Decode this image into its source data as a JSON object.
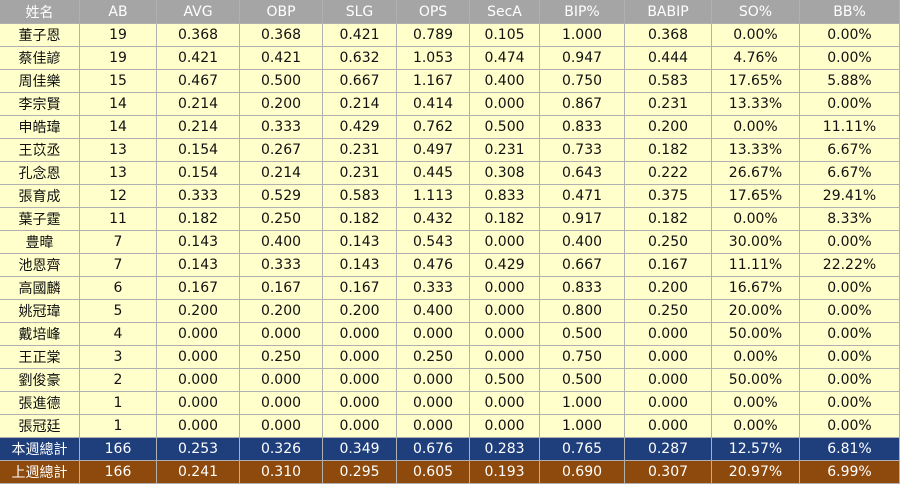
{
  "table": {
    "header": [
      "姓名",
      "AB",
      "AVG",
      "OBP",
      "SLG",
      "OPS",
      "SecA",
      "BIP%",
      "BABIP",
      "SO%",
      "BB%"
    ],
    "rows": [
      [
        "董子恩",
        "19",
        "0.368",
        "0.368",
        "0.421",
        "0.789",
        "0.105",
        "1.000",
        "0.368",
        "0.00%",
        "0.00%"
      ],
      [
        "蔡佳諺",
        "19",
        "0.421",
        "0.421",
        "0.632",
        "1.053",
        "0.474",
        "0.947",
        "0.444",
        "4.76%",
        "0.00%"
      ],
      [
        "周佳樂",
        "15",
        "0.467",
        "0.500",
        "0.667",
        "1.167",
        "0.400",
        "0.750",
        "0.583",
        "17.65%",
        "5.88%"
      ],
      [
        "李宗賢",
        "14",
        "0.214",
        "0.200",
        "0.214",
        "0.414",
        "0.000",
        "0.867",
        "0.231",
        "13.33%",
        "0.00%"
      ],
      [
        "申皓瑋",
        "14",
        "0.214",
        "0.333",
        "0.429",
        "0.762",
        "0.500",
        "0.833",
        "0.200",
        "0.00%",
        "11.11%"
      ],
      [
        "王苡丞",
        "13",
        "0.154",
        "0.267",
        "0.231",
        "0.497",
        "0.231",
        "0.733",
        "0.182",
        "13.33%",
        "6.67%"
      ],
      [
        "孔念恩",
        "13",
        "0.154",
        "0.214",
        "0.231",
        "0.445",
        "0.308",
        "0.643",
        "0.222",
        "26.67%",
        "6.67%"
      ],
      [
        "張育成",
        "12",
        "0.333",
        "0.529",
        "0.583",
        "1.113",
        "0.833",
        "0.471",
        "0.375",
        "17.65%",
        "29.41%"
      ],
      [
        "葉子霆",
        "11",
        "0.182",
        "0.250",
        "0.182",
        "0.432",
        "0.182",
        "0.917",
        "0.182",
        "0.00%",
        "8.33%"
      ],
      [
        "豊暐",
        "7",
        "0.143",
        "0.400",
        "0.143",
        "0.543",
        "0.000",
        "0.400",
        "0.250",
        "30.00%",
        "0.00%"
      ],
      [
        "池恩齊",
        "7",
        "0.143",
        "0.333",
        "0.143",
        "0.476",
        "0.429",
        "0.667",
        "0.167",
        "11.11%",
        "22.22%"
      ],
      [
        "高國麟",
        "6",
        "0.167",
        "0.167",
        "0.167",
        "0.333",
        "0.000",
        "0.833",
        "0.200",
        "16.67%",
        "0.00%"
      ],
      [
        "姚冠瑋",
        "5",
        "0.200",
        "0.200",
        "0.200",
        "0.400",
        "0.000",
        "0.800",
        "0.250",
        "20.00%",
        "0.00%"
      ],
      [
        "戴培峰",
        "4",
        "0.000",
        "0.000",
        "0.000",
        "0.000",
        "0.000",
        "0.500",
        "0.000",
        "50.00%",
        "0.00%"
      ],
      [
        "王正棠",
        "3",
        "0.000",
        "0.250",
        "0.000",
        "0.250",
        "0.000",
        "0.750",
        "0.000",
        "0.00%",
        "0.00%"
      ],
      [
        "劉俊豪",
        "2",
        "0.000",
        "0.000",
        "0.000",
        "0.000",
        "0.500",
        "0.500",
        "0.000",
        "50.00%",
        "0.00%"
      ],
      [
        "張進德",
        "1",
        "0.000",
        "0.000",
        "0.000",
        "0.000",
        "0.000",
        "1.000",
        "0.000",
        "0.00%",
        "0.00%"
      ],
      [
        "張冠廷",
        "1",
        "0.000",
        "0.000",
        "0.000",
        "0.000",
        "0.000",
        "1.000",
        "0.000",
        "0.00%",
        "0.00%"
      ]
    ],
    "totals": [
      [
        "本週總計",
        "166",
        "0.253",
        "0.326",
        "0.349",
        "0.676",
        "0.283",
        "0.765",
        "0.287",
        "12.57%",
        "6.81%"
      ],
      [
        "上週總計",
        "166",
        "0.241",
        "0.310",
        "0.295",
        "0.605",
        "0.193",
        "0.690",
        "0.307",
        "20.97%",
        "6.99%"
      ]
    ]
  }
}
